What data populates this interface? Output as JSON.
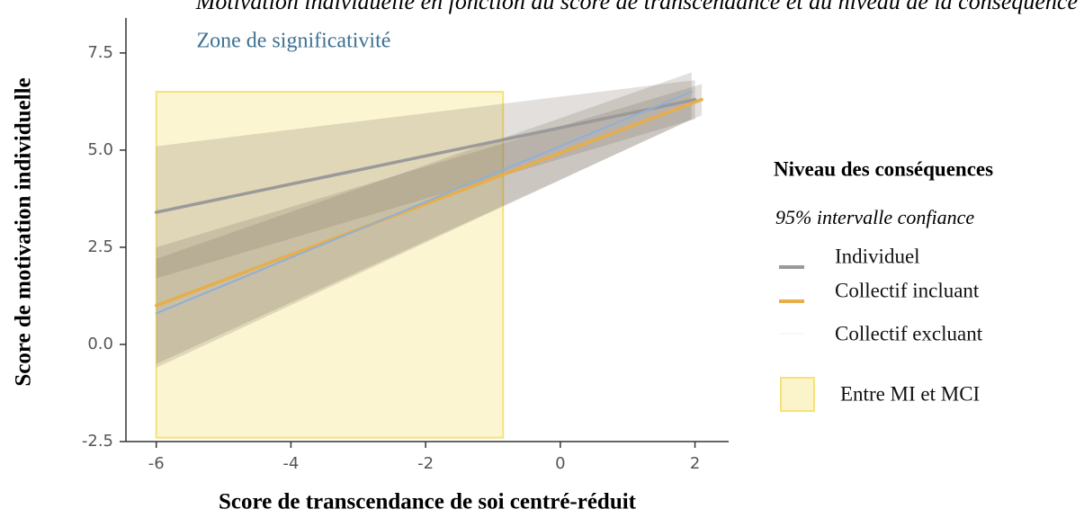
{
  "chart_data": {
    "type": "line",
    "title": "Motivation individuelle en fonction du score de transcendance et du niveau de la conséquence",
    "x_label": "Score de transcendance de soi centré-réduit",
    "y_label": "Score de motivation individuelle",
    "xlim": [
      -6.45,
      2.5
    ],
    "ylim": [
      -2.5,
      8.4
    ],
    "xticks": [
      -6,
      -4,
      -2,
      0,
      2
    ],
    "yticks": [
      -2.5,
      {
        "value": 0,
        "label": "0.0"
      },
      2.5,
      {
        "value": 5,
        "label": "5.0"
      },
      7.5
    ],
    "legend_title": "Niveau des conséquences",
    "legend_subtitle": "95% intervalle confiance",
    "series": [
      {
        "name": "Individuel",
        "color": "#9a9a9a",
        "x": [
          -6,
          2
        ],
        "values": [
          3.4,
          6.3
        ],
        "lower": [
          1.7,
          5.8
        ],
        "upper": [
          5.1,
          6.8
        ]
      },
      {
        "name": "Collectif incluant",
        "color": "#e6ae4c",
        "x": [
          -6,
          2.1
        ],
        "values": [
          1.0,
          6.3
        ],
        "lower": [
          -0.5,
          5.9
        ],
        "upper": [
          2.5,
          6.7
        ]
      },
      {
        "name": "Collectif excluant",
        "color": "#8fb0d8",
        "x": [
          -6,
          1.95
        ],
        "values": [
          0.8,
          6.5
        ],
        "lower": [
          -0.6,
          5.8
        ],
        "upper": [
          2.2,
          7.0
        ]
      }
    ],
    "zone": {
      "label": "Zone de significativité",
      "legend": "Entre MI et MCI",
      "color": "#fbf3c9",
      "xrange": [
        -6,
        -0.85
      ],
      "yrange": [
        -2.4,
        6.5
      ]
    }
  }
}
